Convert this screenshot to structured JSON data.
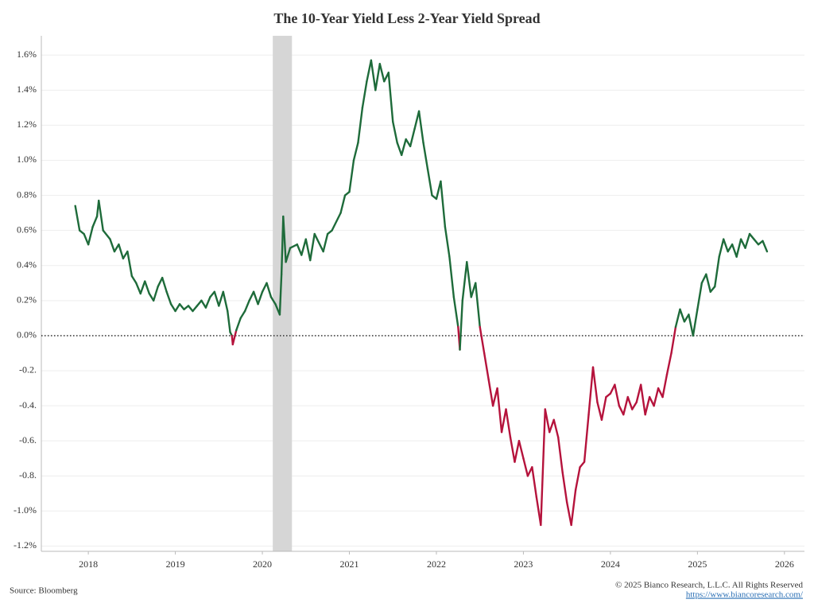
{
  "chart_data": {
    "type": "line",
    "title": "The 10-Year Yield Less 2-Year Yield Spread",
    "source": "Source: Bloomberg",
    "copyright": "© 2025 Bianco Research, L.L.C. All Rights Reserved",
    "link": "https://www.biancoresearch.com/",
    "positive_color": "#1e6b3a",
    "negative_color": "#b5133c",
    "shade_color": "#d6d6d6",
    "shaded_regions": [
      {
        "start": 2020.12,
        "end": 2020.34
      }
    ],
    "reference_line": 0,
    "grid": true,
    "xlim": [
      2017.46,
      2026.23
    ],
    "xticks": [
      2018,
      2019,
      2020,
      2021,
      2022,
      2023,
      2024,
      2025,
      2026
    ],
    "ylim": [
      -1.23,
      1.71
    ],
    "yticks": [
      {
        "value": 1.6,
        "label": "1.6%"
      },
      {
        "value": 1.4,
        "label": "1.4%"
      },
      {
        "value": 1.2,
        "label": "1.2%"
      },
      {
        "value": 1.0,
        "label": "1.0%"
      },
      {
        "value": 0.8,
        "label": "0.8%"
      },
      {
        "value": 0.6,
        "label": "0.6%"
      },
      {
        "value": 0.4,
        "label": "0.4%"
      },
      {
        "value": 0.2,
        "label": "0.2%"
      },
      {
        "value": 0,
        "label": "0.0%"
      },
      {
        "value": -0.2,
        "label": "-0.2."
      },
      {
        "value": -0.4,
        "label": "-0.4."
      },
      {
        "value": -0.6,
        "label": "-0.6."
      },
      {
        "value": -0.8,
        "label": "-0.8."
      },
      {
        "value": -1.0,
        "label": "-1.0%"
      },
      {
        "value": -1.2,
        "label": "-1.2%"
      }
    ],
    "x": [
      2017.85,
      2017.9,
      2017.95,
      2018.0,
      2018.05,
      2018.1,
      2018.12,
      2018.17,
      2018.25,
      2018.3,
      2018.35,
      2018.4,
      2018.45,
      2018.5,
      2018.55,
      2018.6,
      2018.65,
      2018.7,
      2018.75,
      2018.8,
      2018.85,
      2018.9,
      2018.95,
      2019.0,
      2019.05,
      2019.1,
      2019.15,
      2019.2,
      2019.25,
      2019.3,
      2019.35,
      2019.4,
      2019.45,
      2019.5,
      2019.55,
      2019.6,
      2019.63,
      2019.65,
      2019.66,
      2019.7,
      2019.75,
      2019.8,
      2019.85,
      2019.9,
      2019.95,
      2020.0,
      2020.05,
      2020.1,
      2020.15,
      2020.2,
      2020.22,
      2020.24,
      2020.27,
      2020.32,
      2020.4,
      2020.45,
      2020.5,
      2020.55,
      2020.6,
      2020.7,
      2020.75,
      2020.8,
      2020.9,
      2020.95,
      2021.0,
      2021.05,
      2021.1,
      2021.15,
      2021.2,
      2021.25,
      2021.3,
      2021.35,
      2021.4,
      2021.45,
      2021.5,
      2021.55,
      2021.6,
      2021.65,
      2021.7,
      2021.75,
      2021.8,
      2021.85,
      2021.9,
      2021.95,
      2022.0,
      2022.05,
      2022.1,
      2022.15,
      2022.2,
      2022.25,
      2022.27,
      2022.3,
      2022.35,
      2022.4,
      2022.45,
      2022.5,
      2022.55,
      2022.6,
      2022.65,
      2022.7,
      2022.75,
      2022.8,
      2022.85,
      2022.9,
      2022.95,
      2023.0,
      2023.05,
      2023.1,
      2023.15,
      2023.2,
      2023.25,
      2023.3,
      2023.35,
      2023.4,
      2023.45,
      2023.5,
      2023.55,
      2023.6,
      2023.65,
      2023.7,
      2023.75,
      2023.8,
      2023.85,
      2023.9,
      2023.95,
      2024.0,
      2024.05,
      2024.1,
      2024.15,
      2024.2,
      2024.25,
      2024.3,
      2024.35,
      2024.4,
      2024.45,
      2024.5,
      2024.55,
      2024.6,
      2024.65,
      2024.7,
      2024.75,
      2024.8,
      2024.85,
      2024.9,
      2024.95,
      2025.0,
      2025.05,
      2025.1,
      2025.15,
      2025.2,
      2025.25,
      2025.3,
      2025.35,
      2025.4,
      2025.45,
      2025.5,
      2025.55,
      2025.6,
      2025.65,
      2025.7,
      2025.75,
      2025.8
    ],
    "values": [
      0.74,
      0.6,
      0.58,
      0.52,
      0.62,
      0.68,
      0.77,
      0.6,
      0.55,
      0.48,
      0.52,
      0.44,
      0.48,
      0.34,
      0.3,
      0.24,
      0.31,
      0.24,
      0.2,
      0.28,
      0.33,
      0.25,
      0.18,
      0.14,
      0.18,
      0.15,
      0.17,
      0.14,
      0.17,
      0.2,
      0.16,
      0.22,
      0.25,
      0.17,
      0.25,
      0.14,
      0.02,
      0.0,
      -0.05,
      0.03,
      0.1,
      0.14,
      0.2,
      0.25,
      0.18,
      0.25,
      0.3,
      0.22,
      0.18,
      0.12,
      0.35,
      0.68,
      0.42,
      0.5,
      0.52,
      0.46,
      0.55,
      0.43,
      0.58,
      0.48,
      0.58,
      0.6,
      0.7,
      0.8,
      0.82,
      1.0,
      1.1,
      1.3,
      1.45,
      1.57,
      1.4,
      1.55,
      1.45,
      1.5,
      1.22,
      1.1,
      1.03,
      1.12,
      1.08,
      1.18,
      1.28,
      1.1,
      0.95,
      0.8,
      0.78,
      0.88,
      0.62,
      0.45,
      0.22,
      0.05,
      -0.08,
      0.2,
      0.42,
      0.22,
      0.3,
      0.05,
      -0.1,
      -0.25,
      -0.4,
      -0.3,
      -0.55,
      -0.42,
      -0.58,
      -0.72,
      -0.6,
      -0.7,
      -0.8,
      -0.75,
      -0.92,
      -1.08,
      -0.42,
      -0.55,
      -0.48,
      -0.58,
      -0.78,
      -0.95,
      -1.08,
      -0.88,
      -0.75,
      -0.72,
      -0.45,
      -0.18,
      -0.38,
      -0.48,
      -0.35,
      -0.33,
      -0.28,
      -0.4,
      -0.45,
      -0.35,
      -0.42,
      -0.38,
      -0.28,
      -0.45,
      -0.35,
      -0.4,
      -0.3,
      -0.35,
      -0.22,
      -0.1,
      0.05,
      0.15,
      0.08,
      0.12,
      0.0,
      0.15,
      0.3,
      0.35,
      0.25,
      0.28,
      0.45,
      0.55,
      0.48,
      0.52,
      0.45,
      0.55,
      0.5,
      0.58,
      0.55,
      0.52,
      0.54,
      0.48
    ]
  }
}
